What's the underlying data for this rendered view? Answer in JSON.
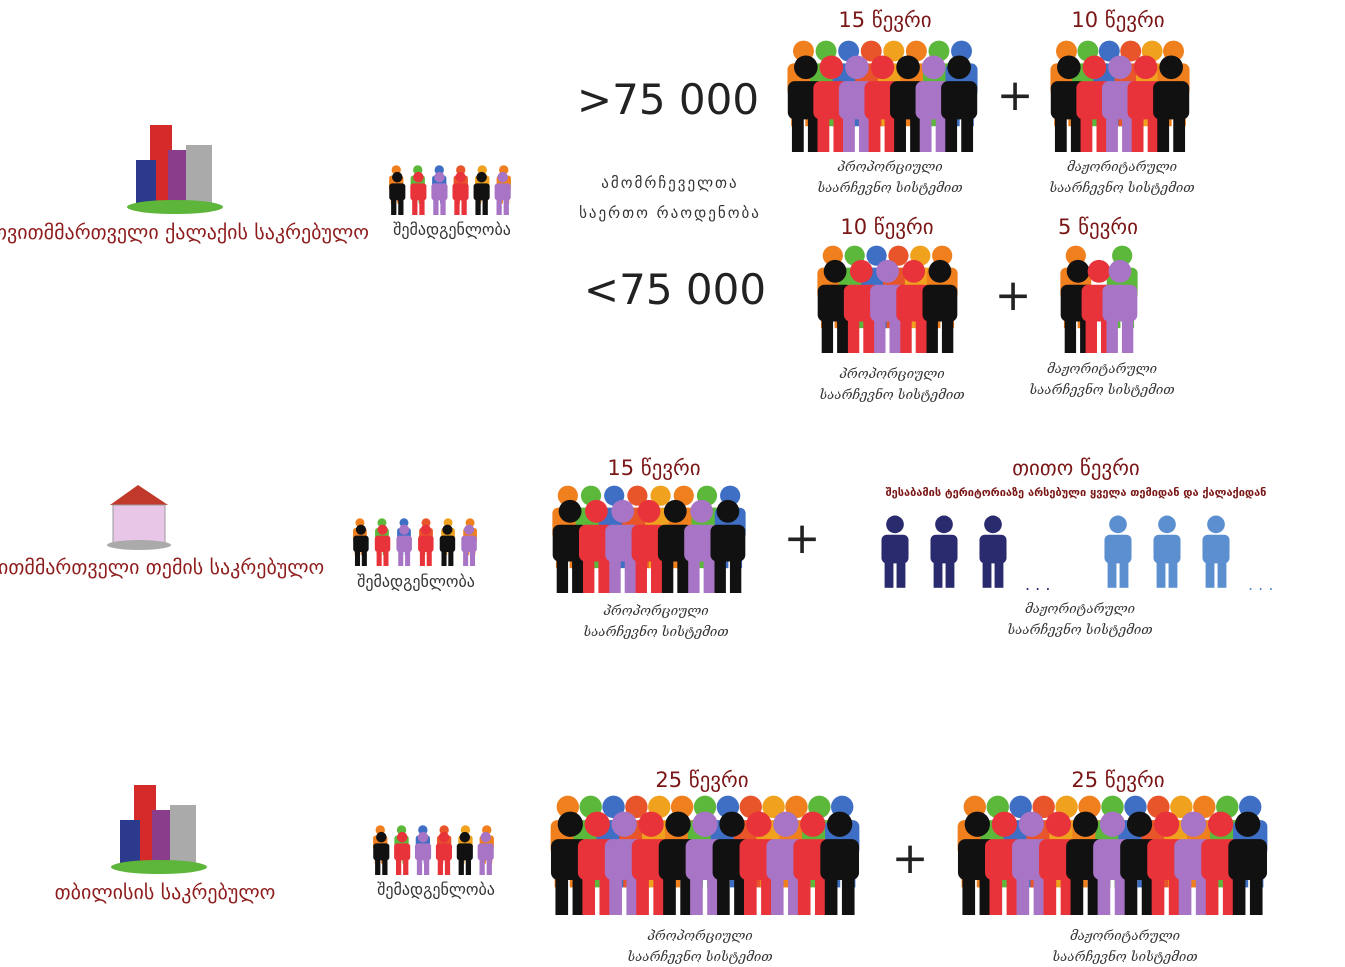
{
  "city": {
    "title": "თვითმმართველი ქალაქის საკრებულო",
    "composition": "შემადგენლობა",
    "above": ">75 000",
    "voters_label": "ამომრჩეველთა საერთო რაოდენობა",
    "below": "<75 000",
    "above_proportional": {
      "count": "15 წევრი",
      "caption": "პროპორციული საარჩევნო სისტემით"
    },
    "above_majoritarian": {
      "count": "10 წევრი",
      "caption": "მაჟორიტარული საარჩევნო სისტემით"
    },
    "below_proportional": {
      "count": "10 წევრი",
      "caption": "პროპორციული საარჩევნო სისტემით"
    },
    "below_majoritarian": {
      "count": "5 წევრი",
      "caption": "მაჟორიტარული საარჩევნო სისტემით"
    }
  },
  "community": {
    "title": "თვითმმართველი თემის საკრებულო",
    "composition": "შემადგენლობა",
    "proportional": {
      "count": "15 წევრი",
      "caption": "პროპორციული საარჩევნო სისტემით"
    },
    "majoritarian": {
      "count": "თითო წევრი",
      "note": "შესაბამის ტერიტორიაზე არსებული ყველა თემიდან და ქალაქიდან",
      "caption": "მაჟორიტარული საარჩევნო სისტემით"
    }
  },
  "tbilisi": {
    "title": "თბილისის საკრებულო",
    "composition": "შემადგენლობა",
    "proportional": {
      "count": "25 წევრი",
      "caption": "პროპორციული საარჩევნო სისტემით"
    },
    "majoritarian": {
      "count": "25 წევრი",
      "caption": "მაჟორიტარული საარჩევნო სისტემით"
    }
  }
}
